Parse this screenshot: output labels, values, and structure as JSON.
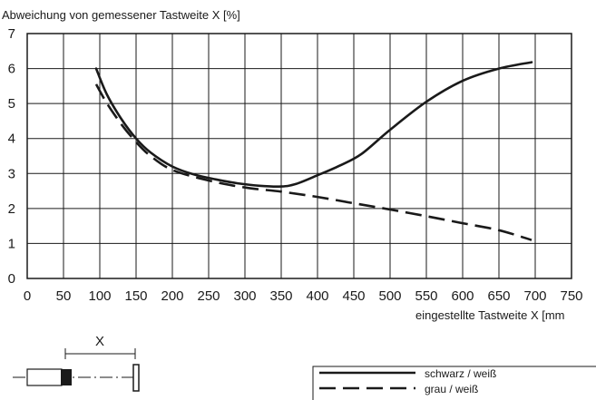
{
  "chart_data": {
    "type": "line",
    "title": "",
    "ylabel": "Abweichung von gemessener Tastweite X [%]",
    "xlabel": "eingestellte Tastweite X [mm",
    "xlim": [
      0,
      750
    ],
    "ylim": [
      0,
      7
    ],
    "xticks": [
      0,
      50,
      100,
      150,
      200,
      250,
      300,
      350,
      400,
      450,
      500,
      550,
      600,
      650,
      700,
      750
    ],
    "yticks": [
      0,
      1,
      2,
      3,
      4,
      5,
      6,
      7
    ],
    "grid": true,
    "legend_position": "bottom-right",
    "series": [
      {
        "name": "schwarz / weiß",
        "line_style": "solid",
        "color": "#1a1a1a",
        "x": [
          95,
          110,
          130,
          150,
          170,
          200,
          230,
          260,
          290,
          320,
          350,
          370,
          400,
          430,
          460,
          500,
          550,
          600,
          650,
          695
        ],
        "y": [
          6.0,
          5.25,
          4.55,
          4.0,
          3.6,
          3.2,
          2.97,
          2.83,
          2.72,
          2.65,
          2.63,
          2.7,
          2.95,
          3.22,
          3.55,
          4.25,
          5.05,
          5.65,
          6.0,
          6.18
        ]
      },
      {
        "name": "grau / weiß",
        "line_style": "dashed",
        "color": "#1a1a1a",
        "x": [
          95,
          110,
          130,
          150,
          170,
          200,
          250,
          300,
          350,
          400,
          450,
          500,
          550,
          600,
          650,
          695
        ],
        "y": [
          5.55,
          5.0,
          4.4,
          3.9,
          3.5,
          3.1,
          2.8,
          2.6,
          2.48,
          2.33,
          2.15,
          1.97,
          1.78,
          1.58,
          1.38,
          1.1
        ]
      }
    ]
  },
  "diagram": {
    "distance_label": "X"
  }
}
